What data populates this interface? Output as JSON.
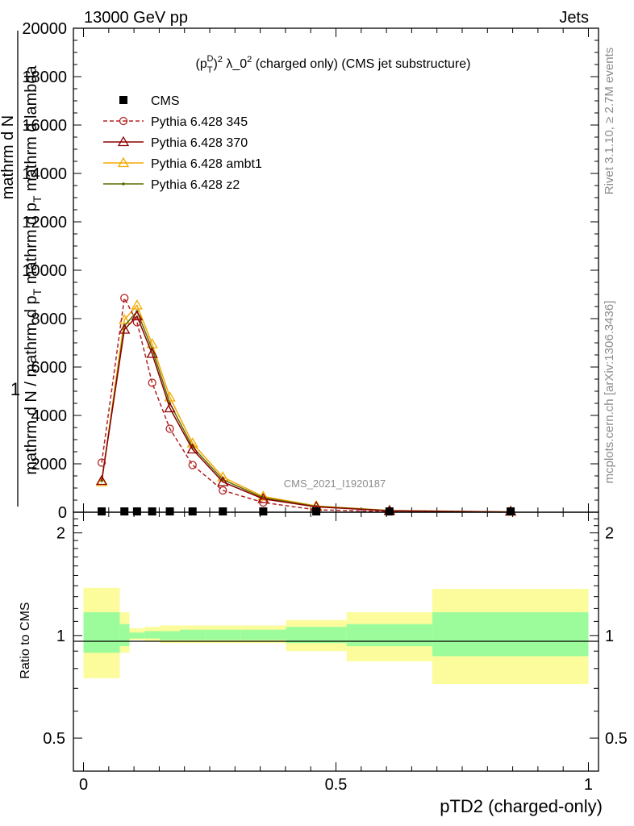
{
  "header": {
    "left": "13000 GeV pp",
    "right": "Jets"
  },
  "side": {
    "rivet": "Rivet 3.1.10, ≥ 2.7M events",
    "mcplots": "mcplots.cern.ch [arXiv:1306.3436]"
  },
  "plot_title": "(p_T^D)^2 λ_0^2 (charged only) (CMS jet substructure)",
  "watermark": "CMS_2021_I1920187",
  "colors": {
    "cms": "#000000",
    "p345": "#b22222",
    "p370": "#8b0000",
    "ambt1": "#f2a900",
    "z2": "#5e6b00",
    "band_inner": "#9cfc9c",
    "band_outer": "#fcfc9c"
  },
  "chart_data": [
    {
      "type": "line",
      "xlabel": "pTD2 (charged-only)",
      "ylabel": "1 / mathrm d N / mathrm d p_T mathrm d^2N / mathrm d p_T mathrm d lambda",
      "xlim": [
        -0.02,
        1.02
      ],
      "ylim": [
        0,
        20000
      ],
      "yticks": [
        0,
        2000,
        4000,
        6000,
        8000,
        10000,
        12000,
        14000,
        16000,
        18000,
        20000
      ],
      "ytick_labels": [
        "0",
        "2000",
        "4000",
        "6000",
        "8000",
        "10000",
        "12000",
        "14000",
        "16000",
        "18000",
        "20000"
      ],
      "legend_position": "top-left",
      "legend": [
        {
          "label": "CMS",
          "key": "cms",
          "marker": "square",
          "dashed": false
        },
        {
          "label": "Pythia 6.428 345",
          "key": "p345",
          "marker": "circle",
          "dashed": true
        },
        {
          "label": "Pythia 6.428 370",
          "key": "p370",
          "marker": "triangle",
          "dashed": false
        },
        {
          "label": "Pythia 6.428 ambt1",
          "key": "ambt1",
          "marker": "triangle",
          "dashed": false
        },
        {
          "label": "Pythia 6.428 z2",
          "key": "z2",
          "marker": "dot",
          "dashed": false
        }
      ],
      "x": [
        0.036,
        0.081,
        0.106,
        0.136,
        0.171,
        0.216,
        0.276,
        0.356,
        0.461,
        0.606,
        0.846
      ],
      "series": [
        {
          "name": "CMS",
          "key": "cms",
          "values": [
            30,
            30,
            30,
            30,
            30,
            30,
            30,
            30,
            30,
            30,
            30
          ]
        },
        {
          "name": "Pythia 6.428 345",
          "key": "p345",
          "values": [
            2050,
            8850,
            7850,
            5350,
            3450,
            1950,
            900,
            400,
            100,
            25,
            5
          ]
        },
        {
          "name": "Pythia 6.428 370",
          "key": "p370",
          "values": [
            1300,
            7550,
            8100,
            6550,
            4300,
            2600,
            1250,
            550,
            220,
            60,
            10
          ]
        },
        {
          "name": "Pythia 6.428 ambt1",
          "key": "ambt1",
          "values": [
            1250,
            7950,
            8550,
            6950,
            4750,
            2850,
            1450,
            650,
            260,
            70,
            12
          ]
        },
        {
          "name": "Pythia 6.428 z2",
          "key": "z2",
          "values": [
            1300,
            7700,
            8300,
            6750,
            4500,
            2700,
            1350,
            600,
            240,
            65,
            11
          ]
        }
      ]
    },
    {
      "type": "area",
      "ylabel": "Ratio to CMS",
      "xlim": [
        -0.02,
        1.02
      ],
      "ylim": [
        0.4,
        2.3
      ],
      "yticks": [
        0.5,
        1,
        2
      ],
      "ytick_labels": [
        "0.5",
        "1",
        "2"
      ],
      "xticks": [
        0,
        0.5,
        1
      ],
      "xtick_labels": [
        "0",
        "0.5",
        "1"
      ],
      "bins": [
        {
          "x0": 0.0,
          "x1": 0.072,
          "inner": [
            0.89,
            1.17
          ],
          "outer": [
            0.75,
            1.38
          ]
        },
        {
          "x0": 0.072,
          "x1": 0.091,
          "inner": [
            0.93,
            1.08
          ],
          "outer": [
            0.89,
            1.17
          ]
        },
        {
          "x0": 0.091,
          "x1": 0.121,
          "inner": [
            0.98,
            1.02
          ],
          "outer": [
            0.97,
            1.05
          ]
        },
        {
          "x0": 0.121,
          "x1": 0.151,
          "inner": [
            0.98,
            1.03
          ],
          "outer": [
            0.96,
            1.06
          ]
        },
        {
          "x0": 0.151,
          "x1": 0.191,
          "inner": [
            0.97,
            1.03
          ],
          "outer": [
            0.95,
            1.07
          ]
        },
        {
          "x0": 0.191,
          "x1": 0.241,
          "inner": [
            0.97,
            1.04
          ],
          "outer": [
            0.95,
            1.07
          ]
        },
        {
          "x0": 0.241,
          "x1": 0.311,
          "inner": [
            0.97,
            1.04
          ],
          "outer": [
            0.95,
            1.07
          ]
        },
        {
          "x0": 0.311,
          "x1": 0.401,
          "inner": [
            0.97,
            1.04
          ],
          "outer": [
            0.95,
            1.07
          ]
        },
        {
          "x0": 0.401,
          "x1": 0.521,
          "inner": [
            0.95,
            1.06
          ],
          "outer": [
            0.9,
            1.11
          ]
        },
        {
          "x0": 0.521,
          "x1": 0.691,
          "inner": [
            0.93,
            1.08
          ],
          "outer": [
            0.84,
            1.17
          ]
        },
        {
          "x0": 0.691,
          "x1": 1.0,
          "inner": [
            0.87,
            1.17
          ],
          "outer": [
            0.72,
            1.37
          ]
        }
      ]
    }
  ]
}
